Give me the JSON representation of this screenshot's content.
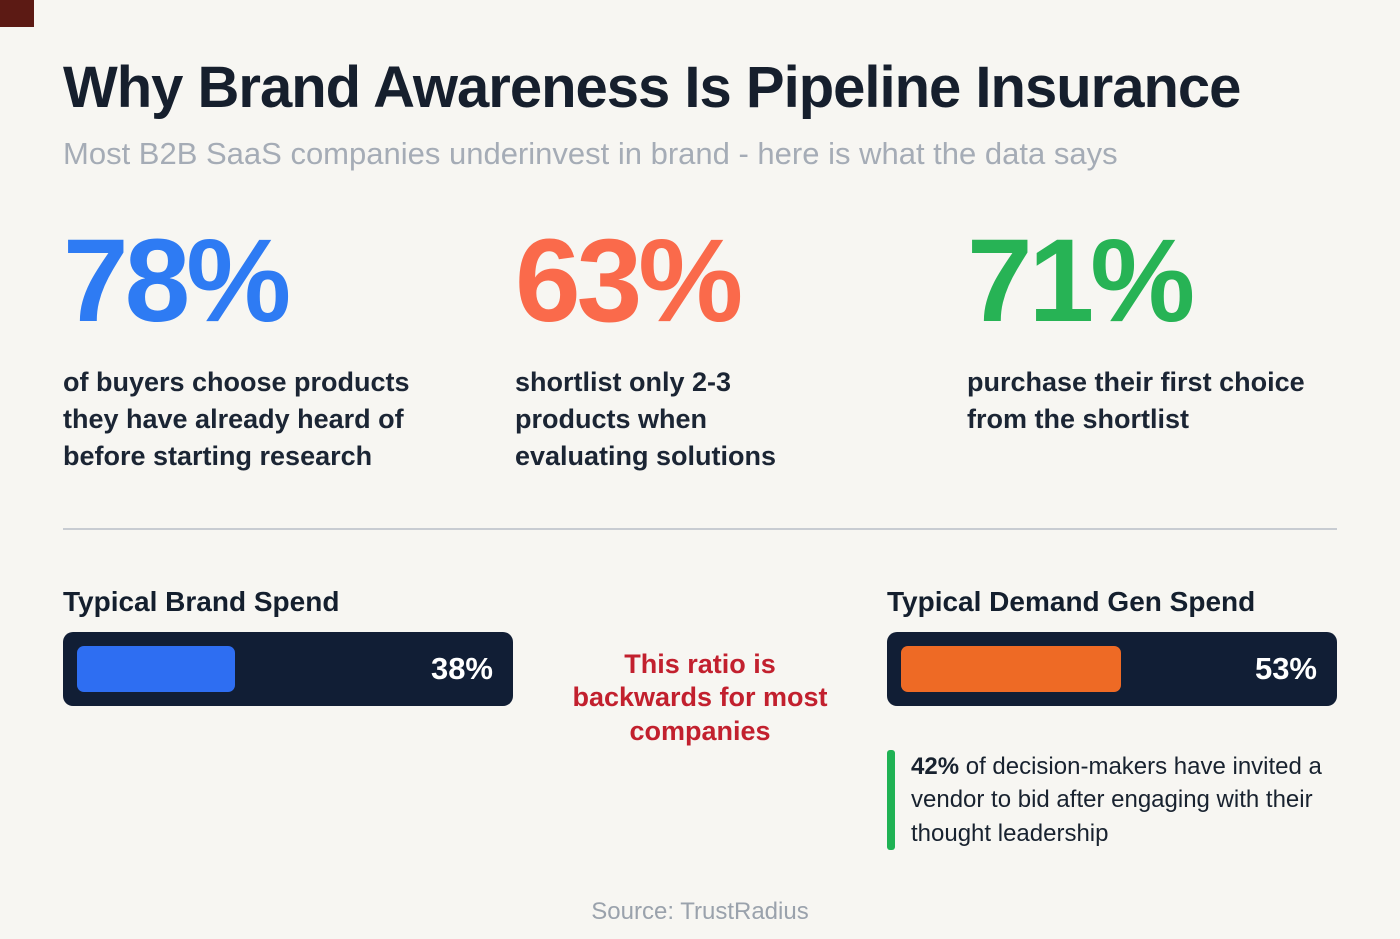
{
  "header": {
    "title": "Why Brand Awareness Is Pipeline Insurance",
    "subtitle": "Most B2B SaaS companies underinvest in brand - here is what the data says"
  },
  "stats": [
    {
      "value": "78%",
      "color": "#2e7bf3",
      "caption": "of buyers choose products they have already heard of before starting research"
    },
    {
      "value": "63%",
      "color": "#fa6a4b",
      "caption": "shortlist only 2-3 products when evaluating solutions"
    },
    {
      "value": "71%",
      "color": "#27b355",
      "caption": "purchase their first choice from the shortlist"
    }
  ],
  "spend": {
    "brand": {
      "label": "Typical Brand Spend",
      "percent": 38,
      "value_label": "38%",
      "fill_color": "#2e6ef2",
      "track_color": "#111e35"
    },
    "demand": {
      "label": "Typical Demand Gen Spend",
      "percent": 53,
      "value_label": "53%",
      "fill_color": "#ee6a25",
      "track_color": "#111e35"
    }
  },
  "callout": {
    "text": "This ratio is backwards for most companies",
    "color": "#c2202e"
  },
  "note": {
    "highlight": "42%",
    "text": " of decision-makers have invited a vendor to bid after engaging with their thought leadership",
    "accent_color": "#1fb254"
  },
  "footer": {
    "source": "Source: TrustRadius"
  },
  "chart_data": [
    {
      "type": "bar",
      "title": "Typical Brand Spend vs Typical Demand Gen Spend",
      "categories": [
        "Typical Brand Spend",
        "Typical Demand Gen Spend"
      ],
      "values": [
        38,
        53
      ],
      "unit": "%",
      "bar_colors": [
        "#2e6ef2",
        "#ee6a25"
      ],
      "annotations": [
        "This ratio is backwards for most companies"
      ],
      "legend_position": "none",
      "grid": false
    },
    {
      "type": "table",
      "title": "Key brand awareness statistics",
      "categories": [
        "of buyers choose products they have already heard of before starting research",
        "shortlist only 2-3 products when evaluating solutions",
        "purchase their first choice from the shortlist",
        "of decision-makers have invited a vendor to bid after engaging with their thought leadership"
      ],
      "values": [
        78,
        63,
        71,
        42
      ],
      "unit": "%",
      "source": "TrustRadius"
    }
  ]
}
